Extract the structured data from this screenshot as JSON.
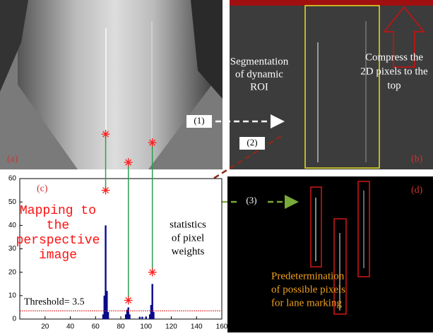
{
  "panels": {
    "a": "(a)",
    "b": "(b)",
    "d": "(d)"
  },
  "steps": [
    "(1)",
    "(2)",
    "(3)"
  ],
  "segmentation": [
    "Segmentation",
    "of dynamic",
    "ROI"
  ],
  "compress": [
    "Compress the",
    "2D pixels to the",
    "top"
  ],
  "predetermination": [
    "Predetermination",
    "of possible pixels",
    "for lane marking"
  ],
  "chart_data": {
    "type": "histogram",
    "panel_label": "(c)",
    "annotations": {
      "mapping": [
        "Mapping to",
        "the",
        "perspective",
        "image"
      ],
      "statistics": [
        "statistics",
        "of pixel",
        "weights"
      ]
    },
    "x": [
      66,
      67,
      68,
      69,
      70,
      84,
      85,
      86,
      87,
      95,
      97,
      100,
      103,
      104,
      105,
      106
    ],
    "values": [
      2,
      10,
      40,
      12,
      3,
      2,
      4,
      5,
      2,
      1,
      1,
      1,
      2,
      6,
      15,
      3
    ],
    "color": "#0a0a8a",
    "markers": {
      "x": [
        68,
        86,
        105
      ],
      "y": [
        55,
        8,
        20
      ],
      "color": "#ff2020"
    },
    "threshold": {
      "value": 3.5,
      "label": "Threshold= 3.5"
    },
    "xlim": [
      0,
      160
    ],
    "ylim": [
      0,
      60
    ],
    "xticks": [
      20,
      40,
      60,
      80,
      100,
      120,
      140,
      160
    ],
    "yticks": [
      0,
      10,
      20,
      30,
      40,
      50,
      60
    ]
  }
}
